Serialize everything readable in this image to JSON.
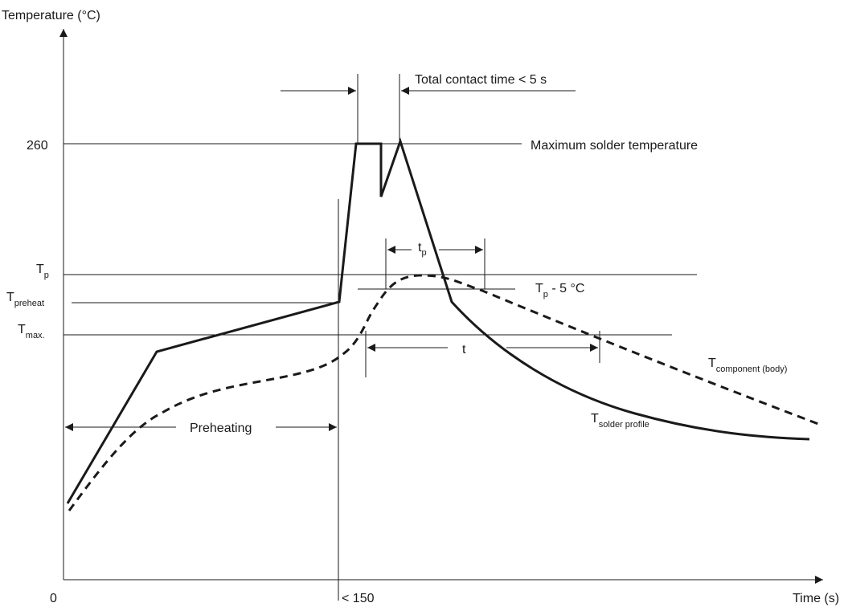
{
  "axes": {
    "y_title": "Temperature (°C)",
    "x_title": "Time (s)",
    "origin_label": "0",
    "x_marker_label": "< 150",
    "y_tick_260": "260"
  },
  "levels": {
    "tp_main": "T",
    "tp_sub": "p",
    "tpreheat_main": "T",
    "tpreheat_sub": "preheat",
    "tmax_main": "T",
    "tmax_sub": "max."
  },
  "annotations": {
    "total_contact": "Total contact time < 5 s",
    "max_solder": "Maximum solder temperature",
    "tp_interval_main": "t",
    "tp_interval_sub": "p",
    "tp_minus_main": "T",
    "tp_minus_sub": "p",
    "tp_minus_rest": " - 5 °C",
    "t_interval": "t",
    "preheating": "Preheating"
  },
  "curves": {
    "component_main": "T",
    "component_sub": "component (body)",
    "solder_main": "T",
    "solder_sub": "solder profile"
  }
}
